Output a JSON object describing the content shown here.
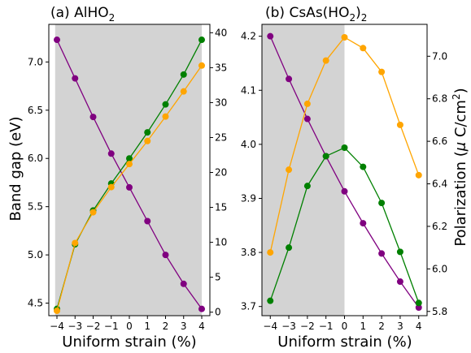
{
  "chart_data": [
    {
      "type": "line",
      "title_prefix": "(a) AlHO",
      "title_sub": "2",
      "title_suffix": "",
      "xlabel": "Uniform strain (%)",
      "ylabel": "Band gap (eV)",
      "y2label_main": "Polarization (",
      "y2label_mu": "μ",
      "y2label_unit": " C/cm",
      "y2label_sup": "2",
      "y2label_close": ")",
      "x": [
        -4,
        -3,
        -2,
        -1,
        0,
        1,
        2,
        3,
        4
      ],
      "xticks": [
        "−4",
        "−3",
        "−2",
        "−1",
        "0",
        "1",
        "2",
        "3",
        "4"
      ],
      "xlim": [
        -4.45,
        4.45
      ],
      "ylim": [
        4.37,
        7.39
      ],
      "y2lim": [
        -0.5,
        41.2
      ],
      "yticks": [
        4.5,
        5.0,
        5.5,
        6.0,
        6.5,
        7.0
      ],
      "yticklabels": [
        "4.5",
        "5.0",
        "5.5",
        "6.0",
        "6.5",
        "7.0"
      ],
      "y2ticks": [
        0,
        5,
        10,
        15,
        20,
        25,
        30,
        35,
        40
      ],
      "y2ticklabels": [
        "0",
        "5",
        "10",
        "15",
        "20",
        "25",
        "30",
        "35",
        "40"
      ],
      "shade_x": [
        -4.1,
        4.0
      ],
      "shade_color": "#d3d3d3",
      "series": [
        {
          "axis": "left",
          "color": "#800080",
          "values": [
            7.23,
            6.83,
            6.43,
            6.05,
            5.7,
            5.35,
            5.0,
            4.7,
            4.44
          ]
        },
        {
          "axis": "left",
          "color": "#008000",
          "values": [
            4.44,
            5.11,
            5.46,
            5.74,
            6.0,
            6.27,
            6.56,
            6.87,
            7.23
          ]
        },
        {
          "axis": "right",
          "color": "#ffa500",
          "values": [
            0.2,
            9.9,
            14.3,
            17.9,
            21.2,
            24.5,
            28.0,
            31.6,
            35.3
          ]
        }
      ]
    },
    {
      "type": "line",
      "title_prefix": "(b) CsAs(HO",
      "title_sub": "2",
      "title_suffix": ")",
      "title_sub2": "2",
      "xlabel": "Uniform strain (%)",
      "x": [
        -4,
        -3,
        -2,
        -1,
        0,
        1,
        2,
        3,
        4
      ],
      "xticks": [
        "−4",
        "−3",
        "−2",
        "−1",
        "0",
        "1",
        "2",
        "3",
        "4"
      ],
      "xlim": [
        -4.45,
        4.45
      ],
      "ylim": [
        3.683,
        4.222
      ],
      "y2lim": [
        5.78,
        7.15
      ],
      "yticks": [
        3.7,
        3.8,
        3.9,
        4.0,
        4.1,
        4.2
      ],
      "yticklabels": [
        "3.7",
        "3.8",
        "3.9",
        "4.0",
        "4.1",
        "4.2"
      ],
      "y2ticks": [
        5.8,
        6.0,
        6.2,
        6.4,
        6.6,
        6.8,
        7.0
      ],
      "y2ticklabels": [
        "5.8",
        "6.0",
        "6.2",
        "6.4",
        "6.6",
        "6.8",
        "7.0"
      ],
      "shade_x": [
        -4.45,
        0.0
      ],
      "shade_color": "#d3d3d3",
      "series": [
        {
          "axis": "left",
          "color": "#800080",
          "values": [
            4.2,
            4.121,
            4.047,
            3.978,
            3.913,
            3.854,
            3.798,
            3.746,
            3.698
          ]
        },
        {
          "axis": "left",
          "color": "#ffa500",
          "values": [
            3.8,
            3.953,
            4.075,
            4.155,
            4.198,
            4.178,
            4.134,
            4.036,
            3.943
          ]
        },
        {
          "axis": "right",
          "color": "#008000",
          "values": [
            5.85,
            6.1,
            6.39,
            6.53,
            6.57,
            6.48,
            6.31,
            6.08,
            5.84
          ]
        }
      ]
    }
  ]
}
